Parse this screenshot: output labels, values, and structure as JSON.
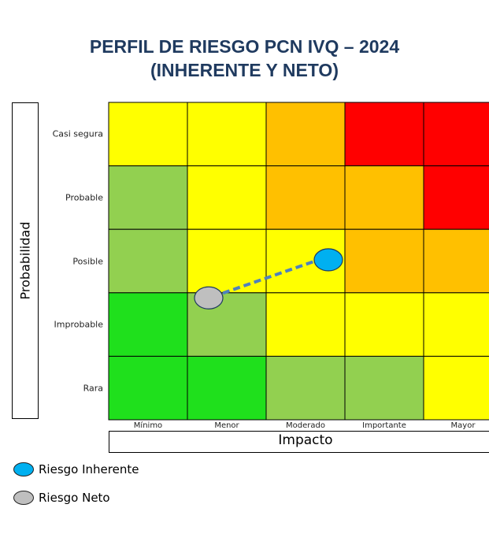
{
  "title_line1": "PERFIL DE RIESGO PCN IVQ – 2024",
  "title_line2": "(INHERENTE Y NETO)",
  "chart_data": {
    "type": "heatmap",
    "ylabel": "Probabilidad",
    "xlabel": "Impacto",
    "rows": [
      "Casi segura",
      "Probable",
      "Posible",
      "Improbable",
      "Rara"
    ],
    "columns": [
      "Mínimo",
      "Menor",
      "Moderado",
      "Importante",
      "Mayor"
    ],
    "level_colors": {
      "green": "#1fe01c",
      "light_green": "#92d050",
      "yellow": "#ffff00",
      "orange": "#ffc000",
      "red": "#ff0000"
    },
    "cells": [
      [
        "yellow",
        "yellow",
        "orange",
        "red",
        "red"
      ],
      [
        "light_green",
        "yellow",
        "orange",
        "orange",
        "red"
      ],
      [
        "light_green",
        "yellow",
        "yellow",
        "orange",
        "orange"
      ],
      [
        "green",
        "light_green",
        "yellow",
        "yellow",
        "yellow"
      ],
      [
        "green",
        "green",
        "light_green",
        "light_green",
        "yellow"
      ]
    ],
    "points": [
      {
        "name": "Riesgo Inherente",
        "impact": "Moderado",
        "probability": "Posible",
        "color": "#00b0f0"
      },
      {
        "name": "Riesgo Neto",
        "impact": "Menor",
        "probability": "Improbable",
        "color": "#bfbfbf"
      }
    ],
    "connector": "dashed",
    "connector_color": "#4f81bd"
  },
  "legend": [
    {
      "label": "Riesgo Inherente",
      "color": "#00b0f0"
    },
    {
      "label": "Riesgo Neto",
      "color": "#bfbfbf"
    }
  ]
}
